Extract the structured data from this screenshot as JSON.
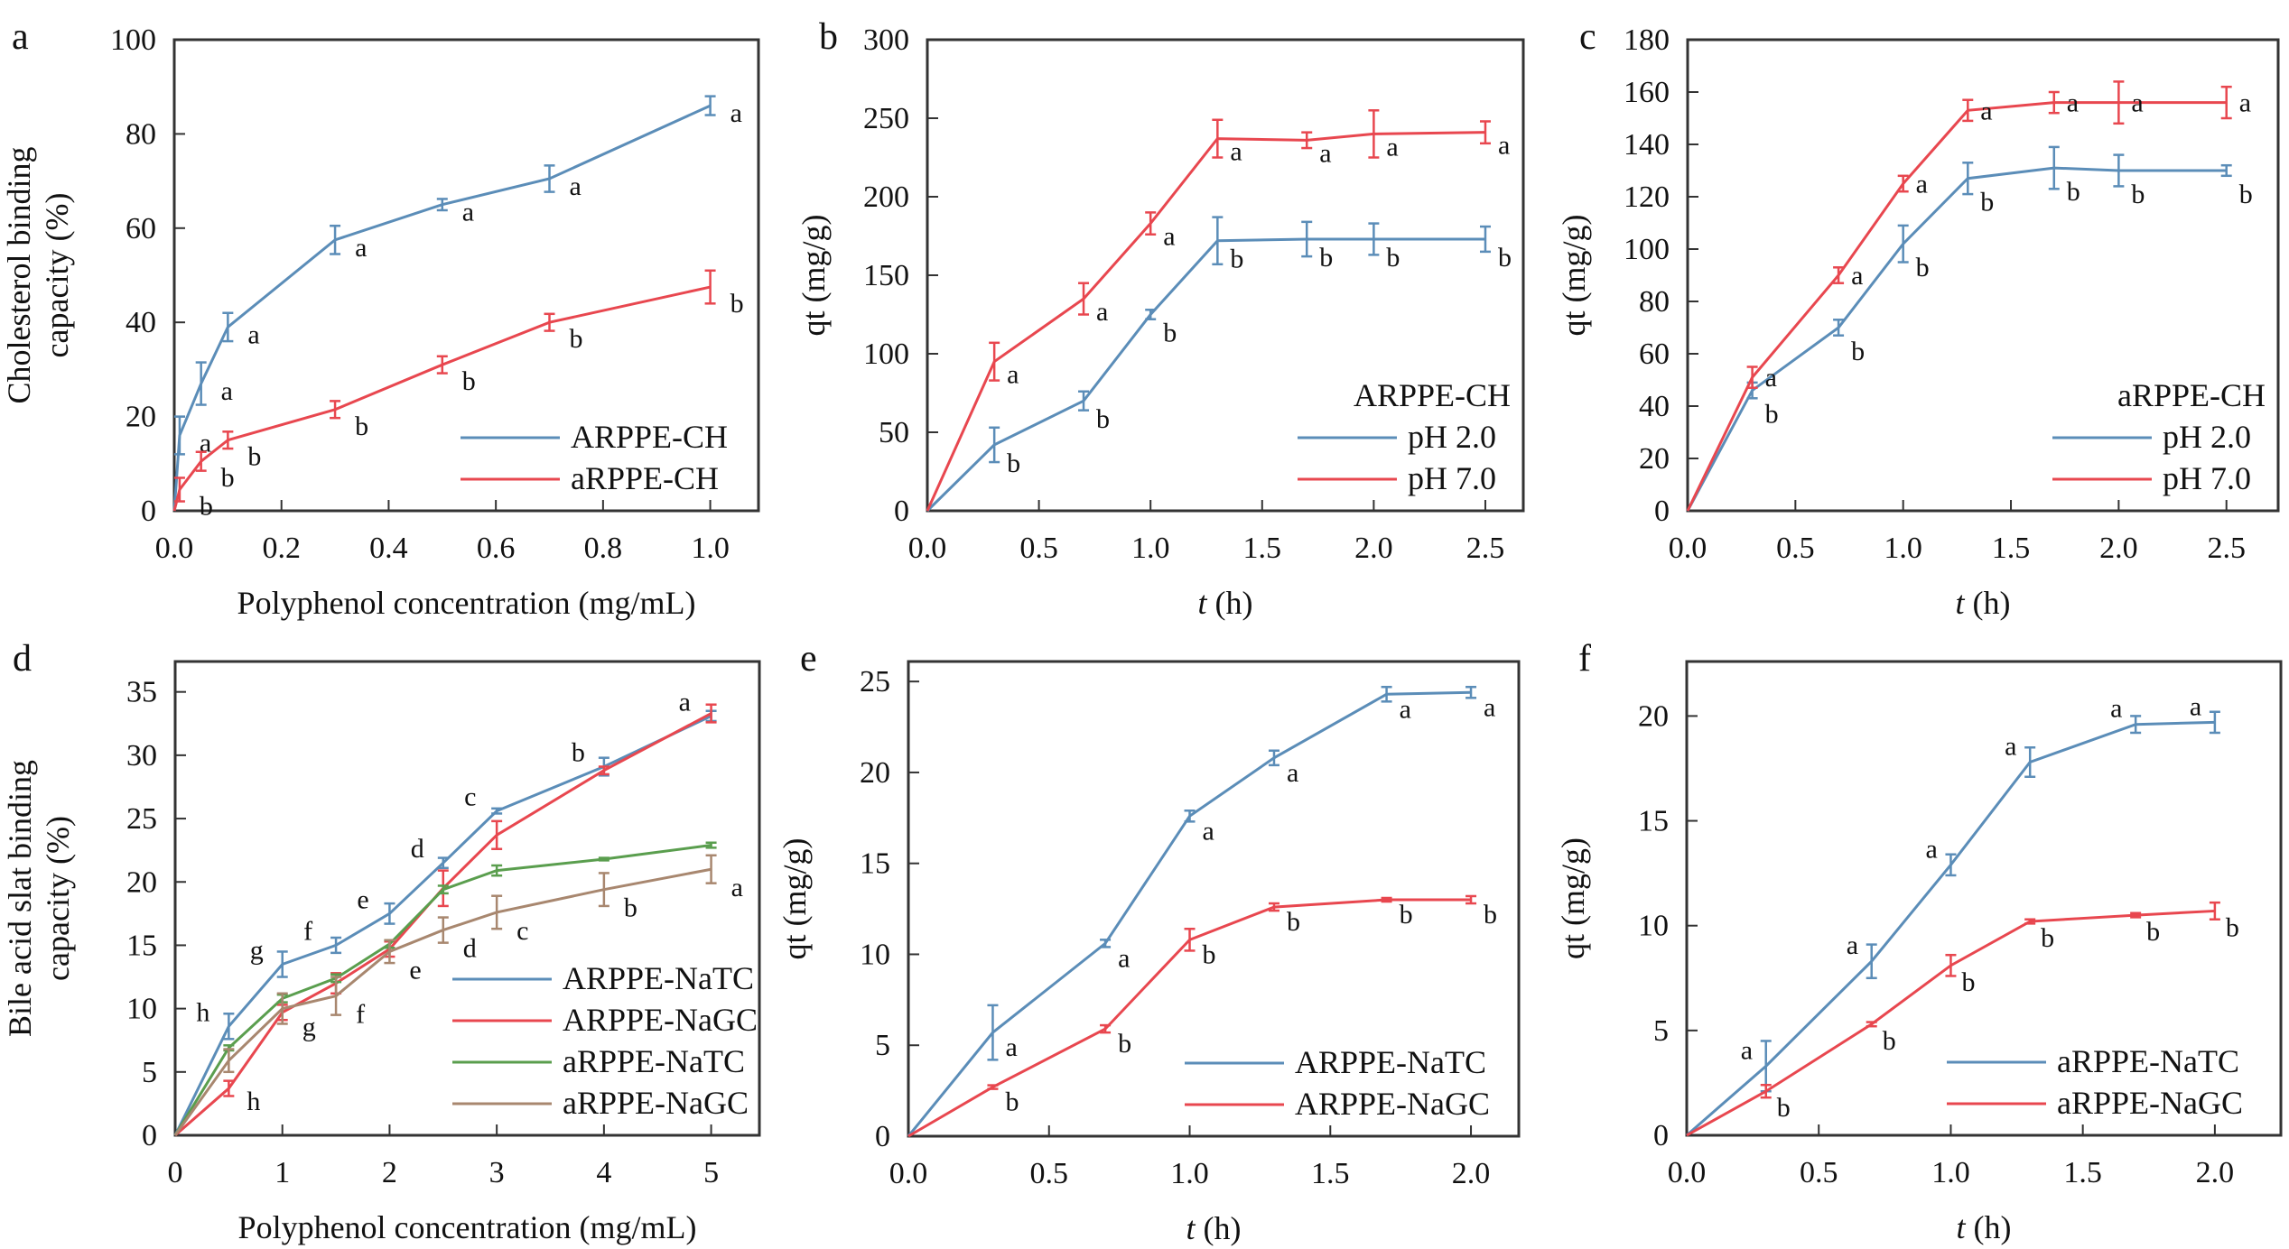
{
  "colors": {
    "blue": "#5b8db8",
    "red": "#e8474f",
    "green": "#5a9e4e",
    "brown": "#a8876f",
    "axis": "#333333"
  },
  "chart_data": [
    {
      "panel": "a",
      "type": "line",
      "xlabel": "Polyphenol concentration (mg/mL)",
      "ylabel": [
        "Cholesterol binding",
        "capacity (%)"
      ],
      "xlim": [
        0,
        1.09
      ],
      "ylim": [
        0,
        100
      ],
      "xticks": [
        "0.0",
        "0.2",
        "0.4",
        "0.6",
        "0.8",
        "1.0"
      ],
      "xtick_values": [
        0,
        0.2,
        0.4,
        0.6,
        0.8,
        1.0
      ],
      "yticks": [
        "0",
        "20",
        "40",
        "60",
        "80",
        "100"
      ],
      "ytick_values": [
        0,
        20,
        40,
        60,
        80,
        100
      ],
      "legend_title": "",
      "legend": "bottom-right",
      "x": [
        0,
        0.01,
        0.05,
        0.1,
        0.3,
        0.5,
        0.7,
        1.0
      ],
      "series": [
        {
          "name": "ARPPE-CH",
          "color": "blue",
          "values": [
            0,
            16,
            27,
            39,
            57.5,
            65,
            70.5,
            86
          ],
          "errors": [
            0,
            4,
            4.5,
            3,
            3,
            1.2,
            2.8,
            2
          ],
          "letters": [
            "",
            "a",
            "a",
            "a",
            "a",
            "a",
            "a",
            "a"
          ]
        },
        {
          "name": "aRPPE-CH",
          "color": "red",
          "values": [
            0,
            4.5,
            10.5,
            15,
            21.5,
            31,
            40,
            47.5
          ],
          "errors": [
            0,
            2.5,
            2,
            1.8,
            1.8,
            1.8,
            1.8,
            3.5
          ],
          "letters": [
            "",
            "b",
            "b",
            "b",
            "b",
            "b",
            "b",
            "b"
          ]
        }
      ]
    },
    {
      "panel": "b",
      "type": "line",
      "xlabel": "t (h)",
      "ylabel": [
        "qt (mg/g)"
      ],
      "xlim": [
        0,
        2.67
      ],
      "ylim": [
        0,
        300
      ],
      "xticks": [
        "0.0",
        "0.5",
        "1.0",
        "1.5",
        "2.0",
        "2.5"
      ],
      "xtick_values": [
        0,
        0.5,
        1.0,
        1.5,
        2.0,
        2.5
      ],
      "yticks": [
        "0",
        "50",
        "100",
        "150",
        "200",
        "250",
        "300"
      ],
      "ytick_values": [
        0,
        50,
        100,
        150,
        200,
        250,
        300
      ],
      "legend_title": "ARPPE-CH",
      "legend": "bottom-right",
      "x": [
        0,
        0.3,
        0.7,
        1.0,
        1.3,
        1.7,
        2.0,
        2.5
      ],
      "series": [
        {
          "name": "pH 2.0",
          "color": "blue",
          "values": [
            0,
            42,
            70,
            125,
            172,
            173,
            173,
            173
          ],
          "errors": [
            0,
            11,
            6,
            3,
            15,
            11,
            10,
            8
          ],
          "letters": [
            "",
            "b",
            "b",
            "b",
            "b",
            "b",
            "b",
            "b"
          ]
        },
        {
          "name": "pH 7.0",
          "color": "red",
          "values": [
            0,
            95,
            135,
            183,
            237,
            236,
            240,
            241
          ],
          "errors": [
            0,
            12,
            10,
            7,
            12,
            5,
            15,
            7
          ],
          "letters": [
            "",
            "a",
            "a",
            "a",
            "a",
            "a",
            "a",
            "a"
          ]
        }
      ]
    },
    {
      "panel": "c",
      "type": "line",
      "xlabel": "t (h)",
      "ylabel": [
        "qt (mg/g)"
      ],
      "xlim": [
        0,
        2.74
      ],
      "ylim": [
        0,
        180
      ],
      "xticks": [
        "0.0",
        "0.5",
        "1.0",
        "1.5",
        "2.0",
        "2.5"
      ],
      "xtick_values": [
        0,
        0.5,
        1.0,
        1.5,
        2.0,
        2.5
      ],
      "yticks": [
        "0",
        "20",
        "40",
        "60",
        "80",
        "100",
        "120",
        "140",
        "160",
        "180"
      ],
      "ytick_values": [
        0,
        20,
        40,
        60,
        80,
        100,
        120,
        140,
        160,
        180
      ],
      "legend_title": "aRPPE-CH",
      "legend": "bottom-right",
      "x": [
        0,
        0.3,
        0.7,
        1.0,
        1.3,
        1.7,
        2.0,
        2.5
      ],
      "series": [
        {
          "name": "pH 2.0",
          "color": "blue",
          "values": [
            0,
            46,
            70,
            102,
            127,
            131,
            130,
            130
          ],
          "errors": [
            0,
            3,
            3,
            7,
            6,
            8,
            6,
            2
          ],
          "letters": [
            "",
            "b",
            "b",
            "b",
            "b",
            "b",
            "b",
            "b"
          ]
        },
        {
          "name": "pH 7.0",
          "color": "red",
          "values": [
            0,
            51,
            90,
            125,
            153,
            156,
            156,
            156
          ],
          "errors": [
            0,
            4,
            3,
            3,
            4,
            4,
            8,
            6
          ],
          "letters": [
            "",
            "a",
            "a",
            "a",
            "a",
            "a",
            "a",
            "a"
          ]
        }
      ]
    },
    {
      "panel": "d",
      "type": "line",
      "xlabel": "Polyphenol concentration (mg/mL)",
      "ylabel": [
        "Bile acid slat binding",
        "capacity (%)"
      ],
      "xlim": [
        0,
        5.45
      ],
      "ylim": [
        0,
        37.4
      ],
      "xticks": [
        "0",
        "1",
        "2",
        "3",
        "4",
        "5"
      ],
      "xtick_values": [
        0,
        1,
        2,
        3,
        4,
        5
      ],
      "yticks": [
        "0",
        "5",
        "10",
        "15",
        "20",
        "25",
        "30",
        "35"
      ],
      "ytick_values": [
        0,
        5,
        10,
        15,
        20,
        25,
        30,
        35
      ],
      "legend_title": "",
      "legend": "bottom-right",
      "x": [
        0,
        0.5,
        1,
        1.5,
        2,
        2.5,
        3,
        4,
        5
      ],
      "series": [
        {
          "name": "ARPPE-NaTC",
          "color": "blue",
          "values": [
            0,
            8.6,
            13.5,
            15,
            17.5,
            21.5,
            25.6,
            29.1,
            33.1
          ],
          "errors": [
            0,
            1,
            1,
            0.6,
            0.8,
            0.4,
            0.2,
            0.7,
            0.4
          ],
          "letters": [
            "",
            "h",
            "g",
            "f",
            "e",
            "d",
            "c",
            "b",
            "a"
          ]
        },
        {
          "name": "ARPPE-NaGC",
          "color": "red",
          "values": [
            0,
            3.7,
            9.7,
            12,
            14.7,
            19.5,
            23.7,
            28.8,
            33.3
          ],
          "errors": [
            0,
            0.6,
            0.6,
            0.8,
            0.6,
            1.4,
            1.1,
            0.3,
            0.7
          ],
          "letters": [
            "",
            "h",
            "",
            "",
            "",
            "",
            "",
            "",
            ""
          ]
        },
        {
          "name": "aRPPE-NaTC",
          "color": "green",
          "values": [
            0,
            6.9,
            10.8,
            12.4,
            15.1,
            19.4,
            20.9,
            21.8,
            22.9
          ],
          "errors": [
            0,
            0.2,
            0.3,
            0.3,
            0.3,
            0.3,
            0.4,
            0.1,
            0.2
          ],
          "letters": [
            "",
            "",
            "",
            "",
            "",
            "",
            "",
            "",
            ""
          ]
        },
        {
          "name": "aRPPE-NaGC",
          "color": "brown",
          "values": [
            0,
            5.9,
            10,
            11,
            14.5,
            16.2,
            17.6,
            19.4,
            21
          ],
          "errors": [
            0,
            0.9,
            1.2,
            1.5,
            0.9,
            1.0,
            1.3,
            1.3,
            1.1
          ],
          "letters": [
            "",
            "",
            "g",
            "f",
            "e",
            "d",
            "c",
            "b",
            "a"
          ]
        }
      ]
    },
    {
      "panel": "e",
      "type": "line",
      "xlabel": "t (h)",
      "ylabel": [
        "qt (mg/g)"
      ],
      "xlim": [
        0,
        2.17
      ],
      "ylim": [
        0,
        26.1
      ],
      "xticks": [
        "0.0",
        "0.5",
        "1.0",
        "1.5",
        "2.0"
      ],
      "xtick_values": [
        0,
        0.5,
        1.0,
        1.5,
        2.0
      ],
      "yticks": [
        "0",
        "5",
        "10",
        "15",
        "20",
        "25"
      ],
      "ytick_values": [
        0,
        5,
        10,
        15,
        20,
        25
      ],
      "legend_title": "",
      "legend": "bottom-right",
      "x": [
        0,
        0.3,
        0.7,
        1.0,
        1.3,
        1.7,
        2.0
      ],
      "series": [
        {
          "name": "ARPPE-NaTC",
          "color": "blue",
          "values": [
            0,
            5.7,
            10.6,
            17.6,
            20.8,
            24.3,
            24.4
          ],
          "errors": [
            0,
            1.5,
            0.2,
            0.3,
            0.4,
            0.4,
            0.3
          ],
          "letters": [
            "",
            "a",
            "a",
            "a",
            "a",
            "a",
            "a"
          ]
        },
        {
          "name": "ARPPE-NaGC",
          "color": "red",
          "values": [
            0,
            2.7,
            5.9,
            10.8,
            12.6,
            13,
            13
          ],
          "errors": [
            0,
            0.1,
            0.2,
            0.6,
            0.2,
            0.1,
            0.2
          ],
          "letters": [
            "",
            "b",
            "b",
            "b",
            "b",
            "b",
            "b"
          ]
        }
      ]
    },
    {
      "panel": "f",
      "type": "line",
      "xlabel": "t (h)",
      "ylabel": [
        "qt (mg/g)"
      ],
      "xlim": [
        0,
        2.25
      ],
      "ylim": [
        0,
        22.6
      ],
      "xticks": [
        "0.0",
        "0.5",
        "1.0",
        "1.5",
        "2.0"
      ],
      "xtick_values": [
        0,
        0.5,
        1.0,
        1.5,
        2.0
      ],
      "yticks": [
        "0",
        "5",
        "10",
        "15",
        "20"
      ],
      "ytick_values": [
        0,
        5,
        10,
        15,
        20
      ],
      "legend_title": "",
      "legend": "bottom-right",
      "x": [
        0,
        0.3,
        0.7,
        1.0,
        1.3,
        1.7,
        2.0
      ],
      "series": [
        {
          "name": "aRPPE-NaTC",
          "color": "blue",
          "values": [
            0,
            3.3,
            8.3,
            12.9,
            17.8,
            19.6,
            19.7
          ],
          "errors": [
            0,
            1.2,
            0.8,
            0.5,
            0.7,
            0.4,
            0.5
          ],
          "letters": [
            "",
            "a",
            "a",
            "a",
            "a",
            "a",
            "a"
          ]
        },
        {
          "name": "aRPPE-NaGC",
          "color": "red",
          "values": [
            0,
            2.1,
            5.3,
            8.1,
            10.2,
            10.5,
            10.7
          ],
          "errors": [
            0,
            0.3,
            0.1,
            0.5,
            0.1,
            0.1,
            0.4
          ],
          "letters": [
            "",
            "b",
            "b",
            "b",
            "b",
            "b",
            "b"
          ]
        }
      ]
    }
  ]
}
